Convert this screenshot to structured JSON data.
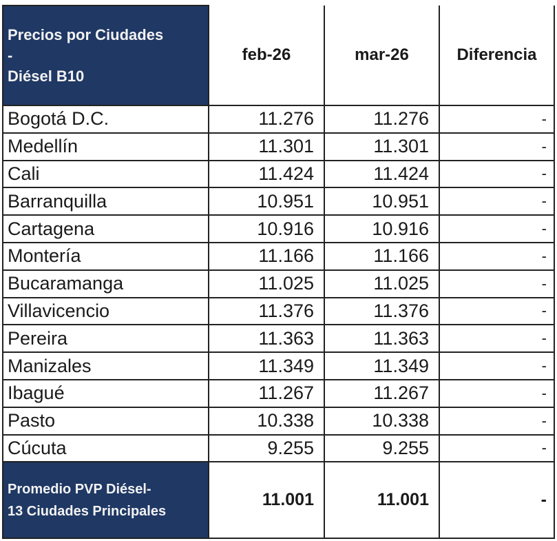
{
  "table": {
    "header": {
      "title_lines": [
        "Precios por Ciudades",
        "-",
        "Diésel B10"
      ],
      "columns": [
        "feb-26",
        "mar-26",
        "Diferencia"
      ]
    },
    "rows": [
      {
        "city": "Bogotá D.C.",
        "feb": "11.276",
        "mar": "11.276",
        "diff": "-"
      },
      {
        "city": "Medellín",
        "feb": "11.301",
        "mar": "11.301",
        "diff": "-"
      },
      {
        "city": "Cali",
        "feb": "11.424",
        "mar": "11.424",
        "diff": "-"
      },
      {
        "city": "Barranquilla",
        "feb": "10.951",
        "mar": "10.951",
        "diff": "-"
      },
      {
        "city": "Cartagena",
        "feb": "10.916",
        "mar": "10.916",
        "diff": "-"
      },
      {
        "city": "Montería",
        "feb": "11.166",
        "mar": "11.166",
        "diff": "-"
      },
      {
        "city": "Bucaramanga",
        "feb": "11.025",
        "mar": "11.025",
        "diff": "-"
      },
      {
        "city": "Villavicencio",
        "feb": "11.376",
        "mar": "11.376",
        "diff": "-"
      },
      {
        "city": "Pereira",
        "feb": "11.363",
        "mar": "11.363",
        "diff": "-"
      },
      {
        "city": "Manizales",
        "feb": "11.349",
        "mar": "11.349",
        "diff": "-"
      },
      {
        "city": "Ibagué",
        "feb": "11.267",
        "mar": "11.267",
        "diff": "-"
      },
      {
        "city": "Pasto",
        "feb": "10.338",
        "mar": "10.338",
        "diff": "-"
      },
      {
        "city": "Cúcuta",
        "feb": "9.255",
        "mar": "9.255",
        "diff": "-"
      }
    ],
    "footer": {
      "label_lines": [
        "Promedio PVP Diésel-",
        "13 Ciudades Principales"
      ],
      "feb": "11.001",
      "mar": "11.001",
      "diff": "-"
    }
  },
  "colors": {
    "header_navy": "#1f3864",
    "header_text": "#f2f2f2",
    "border": "#222222"
  }
}
